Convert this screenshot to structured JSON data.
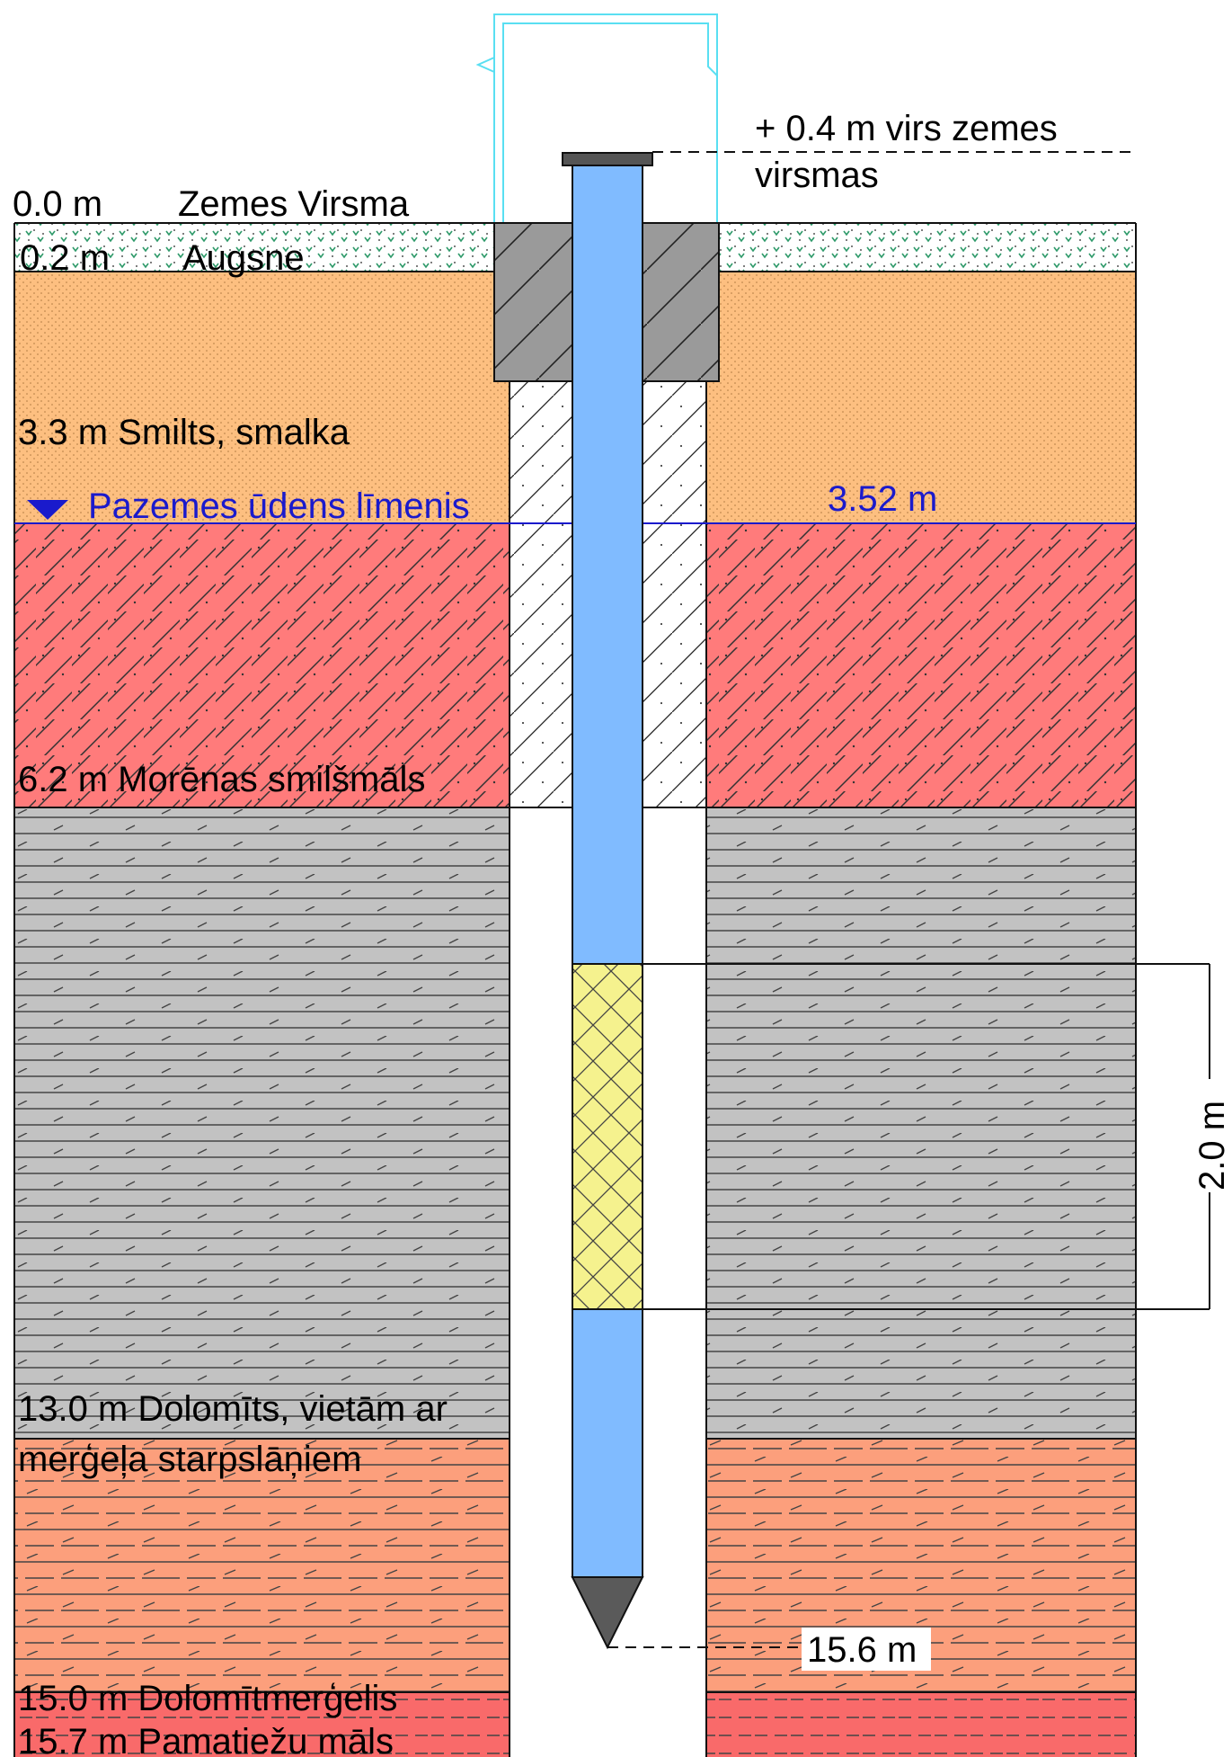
{
  "colors": {
    "soil": "#ffffff",
    "sand": "#fdbf80",
    "moraine": "#ff7b7b",
    "dolomite": "#c2c2c2",
    "marl": "#fc9f7c",
    "bedrock_clay": "#f96a6a",
    "pipe": "#80bbff",
    "screen": "#f5f28e",
    "concrete": "#9a9a9a",
    "cap": "#555555",
    "water_line": "#1a1acc",
    "protective_casing": "#59dff2"
  },
  "layers": [
    {
      "depth_label": "0.0 m",
      "name": "Zemes Virsma"
    },
    {
      "depth_label": "0.2 m",
      "name": "Augsne"
    },
    {
      "label": "3.3 m Smilts, smalka"
    },
    {
      "label": "6.2 m Morēnas smilšmāls"
    },
    {
      "label_line1": "13.0 m Dolomīts, vietām ar",
      "label_line2": "merģeļa starpslāņiem"
    },
    {
      "label": "15.0 m Dolomītmerģelis"
    },
    {
      "label": "15.7 m Pamatiežu māls"
    }
  ],
  "groundwater": {
    "label": "Pazemes ūdens līmenis",
    "depth": "3.52 m",
    "symbol": "triangle-down-icon"
  },
  "well": {
    "above_ground_line1": "+ 0.4 m virs zemes",
    "above_ground_line2": "virsmas",
    "screen_length": "2.0 m",
    "bottom_depth": "15.6 m"
  }
}
